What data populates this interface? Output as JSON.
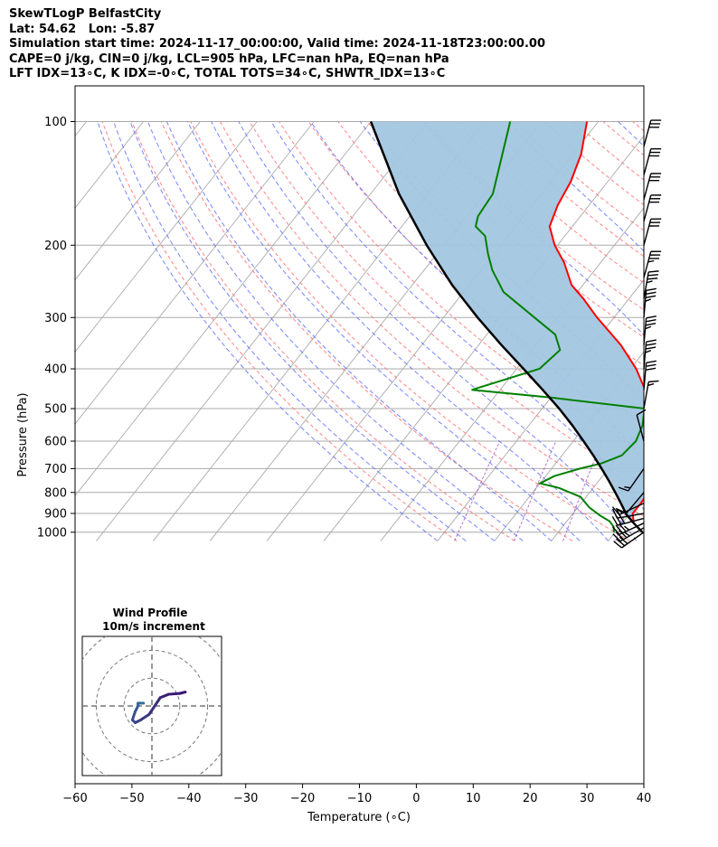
{
  "header": {
    "line1": "SkewTLogP BelfastCity",
    "line2": "Lat: 54.62   Lon: -5.87",
    "line3": "Simulation start time: 2024-11-17_00:00:00, Valid time: 2024-11-18T23:00:00.00",
    "line4": "CAPE=0 j/kg, CIN=0 j/kg, LCL=905 hPa, LFC=nan hPa, EQ=nan hPa",
    "line5": "LFT IDX=13∘C, K IDX=-0∘C, TOTAL TOTS=34∘C, SHWTR_IDX=13∘C"
  },
  "colors": {
    "temperature": "#ff0000",
    "dewpoint": "#008000",
    "parcel": "#000000",
    "cape_fill": "#a3c6e0",
    "dry_adiabat": "#ff6f6f",
    "moist_adiabat": "#5566ff",
    "mixing_ratio": "#a050c8",
    "isotherm": "#aaaaaa",
    "hodograph_start": "#3b0f70",
    "hodograph_end": "#35709a"
  },
  "chart_data": {
    "type": "line",
    "title": "",
    "xlabel": "Temperature (∘C)",
    "ylabel": "Pressure (hPa)",
    "x_ticks": [
      -60,
      -50,
      -40,
      -30,
      -20,
      -10,
      0,
      10,
      20,
      30,
      40
    ],
    "y_ticks": [
      100,
      200,
      300,
      400,
      500,
      600,
      700,
      800,
      900,
      1000
    ],
    "xlim": [
      -60,
      40
    ],
    "ylim": [
      1050,
      100
    ],
    "y_scale": "log",
    "grid": true,
    "series": [
      {
        "name": "",
        "role": "temperature",
        "values": [
          [
            1000,
            4.8
          ],
          [
            950,
            2.0
          ],
          [
            900,
            0.5
          ],
          [
            850,
            0.5
          ],
          [
            800,
            0.3
          ],
          [
            750,
            -0.8
          ],
          [
            700,
            -2.5
          ],
          [
            650,
            -4.0
          ],
          [
            600,
            -5.5
          ],
          [
            550,
            -7.8
          ],
          [
            500,
            -11.0
          ],
          [
            450,
            -14.5
          ],
          [
            400,
            -19.0
          ],
          [
            350,
            -25.0
          ],
          [
            300,
            -33.0
          ],
          [
            270,
            -38.0
          ],
          [
            250,
            -42.0
          ],
          [
            220,
            -46.5
          ],
          [
            200,
            -50.5
          ],
          [
            180,
            -54.0
          ],
          [
            160,
            -55.5
          ],
          [
            140,
            -56.5
          ],
          [
            120,
            -58.5
          ],
          [
            100,
            -62.0
          ]
        ]
      },
      {
        "name": "",
        "role": "dewpoint",
        "values": [
          [
            1000,
            -0.2
          ],
          [
            970,
            -1.0
          ],
          [
            940,
            -2.5
          ],
          [
            910,
            -5.0
          ],
          [
            870,
            -8.0
          ],
          [
            820,
            -11.0
          ],
          [
            780,
            -16.0
          ],
          [
            760,
            -20.0
          ],
          [
            730,
            -18.5
          ],
          [
            700,
            -15.0
          ],
          [
            680,
            -12.0
          ],
          [
            650,
            -9.5
          ],
          [
            600,
            -9.0
          ],
          [
            550,
            -10.0
          ],
          [
            500,
            -12.0
          ],
          [
            470,
            -30.0
          ],
          [
            450,
            -45.0
          ],
          [
            400,
            -36.0
          ],
          [
            360,
            -35.0
          ],
          [
            330,
            -38.0
          ],
          [
            300,
            -44.0
          ],
          [
            260,
            -53.0
          ],
          [
            230,
            -58.0
          ],
          [
            210,
            -61.0
          ],
          [
            190,
            -64.0
          ],
          [
            180,
            -67.0
          ],
          [
            170,
            -68.0
          ],
          [
            150,
            -68.5
          ],
          [
            100,
            -75.5
          ]
        ]
      },
      {
        "name": "",
        "role": "parcel",
        "values": [
          [
            1000,
            4.8
          ],
          [
            950,
            2.0
          ],
          [
            905,
            -0.5
          ],
          [
            850,
            -3.0
          ],
          [
            800,
            -5.5
          ],
          [
            750,
            -8.2
          ],
          [
            700,
            -11.2
          ],
          [
            650,
            -14.5
          ],
          [
            600,
            -18.2
          ],
          [
            550,
            -22.3
          ],
          [
            500,
            -27.0
          ],
          [
            450,
            -32.5
          ],
          [
            400,
            -38.8
          ],
          [
            350,
            -46.0
          ],
          [
            300,
            -54.0
          ],
          [
            250,
            -63.0
          ],
          [
            200,
            -73.0
          ],
          [
            150,
            -85.0
          ],
          [
            100,
            -100.0
          ]
        ]
      }
    ],
    "wind_barbs": [
      {
        "p": 1000,
        "speed_kt": 30,
        "dir_deg": 235
      },
      {
        "p": 975,
        "speed_kt": 35,
        "dir_deg": 240
      },
      {
        "p": 950,
        "speed_kt": 35,
        "dir_deg": 245
      },
      {
        "p": 925,
        "speed_kt": 30,
        "dir_deg": 255
      },
      {
        "p": 900,
        "speed_kt": 20,
        "dir_deg": 260
      },
      {
        "p": 850,
        "speed_kt": 15,
        "dir_deg": 245
      },
      {
        "p": 800,
        "speed_kt": 10,
        "dir_deg": 220
      },
      {
        "p": 700,
        "speed_kt": 15,
        "dir_deg": 215
      },
      {
        "p": 600,
        "speed_kt": 10,
        "dir_deg": 345
      },
      {
        "p": 500,
        "speed_kt": 15,
        "dir_deg": 10
      },
      {
        "p": 450,
        "speed_kt": 30,
        "dir_deg": 5
      },
      {
        "p": 400,
        "speed_kt": 35,
        "dir_deg": 5
      },
      {
        "p": 350,
        "speed_kt": 35,
        "dir_deg": 5
      },
      {
        "p": 300,
        "speed_kt": 35,
        "dir_deg": 5
      },
      {
        "p": 270,
        "speed_kt": 35,
        "dir_deg": 10
      },
      {
        "p": 240,
        "speed_kt": 35,
        "dir_deg": 15
      },
      {
        "p": 200,
        "speed_kt": 30,
        "dir_deg": 15
      },
      {
        "p": 175,
        "speed_kt": 30,
        "dir_deg": 15
      },
      {
        "p": 155,
        "speed_kt": 30,
        "dir_deg": 15
      },
      {
        "p": 135,
        "speed_kt": 30,
        "dir_deg": 15
      },
      {
        "p": 115,
        "speed_kt": 30,
        "dir_deg": 15
      }
    ],
    "hodograph": {
      "title_line1": "Wind Profile",
      "title_line2": "10m/s increment",
      "rings_ms": [
        10,
        20,
        30
      ],
      "range_ms": 25,
      "uv": [
        [
          12,
          5
        ],
        [
          10,
          4.5
        ],
        [
          6,
          4.2
        ],
        [
          3,
          3
        ],
        [
          2,
          1.5
        ],
        [
          -1,
          -3
        ],
        [
          -4,
          -5
        ],
        [
          -6,
          -6
        ],
        [
          -7,
          -5
        ],
        [
          -6,
          -2
        ],
        [
          -5,
          0
        ],
        [
          -5,
          1
        ],
        [
          -4,
          1
        ],
        [
          -3,
          1
        ]
      ]
    }
  }
}
